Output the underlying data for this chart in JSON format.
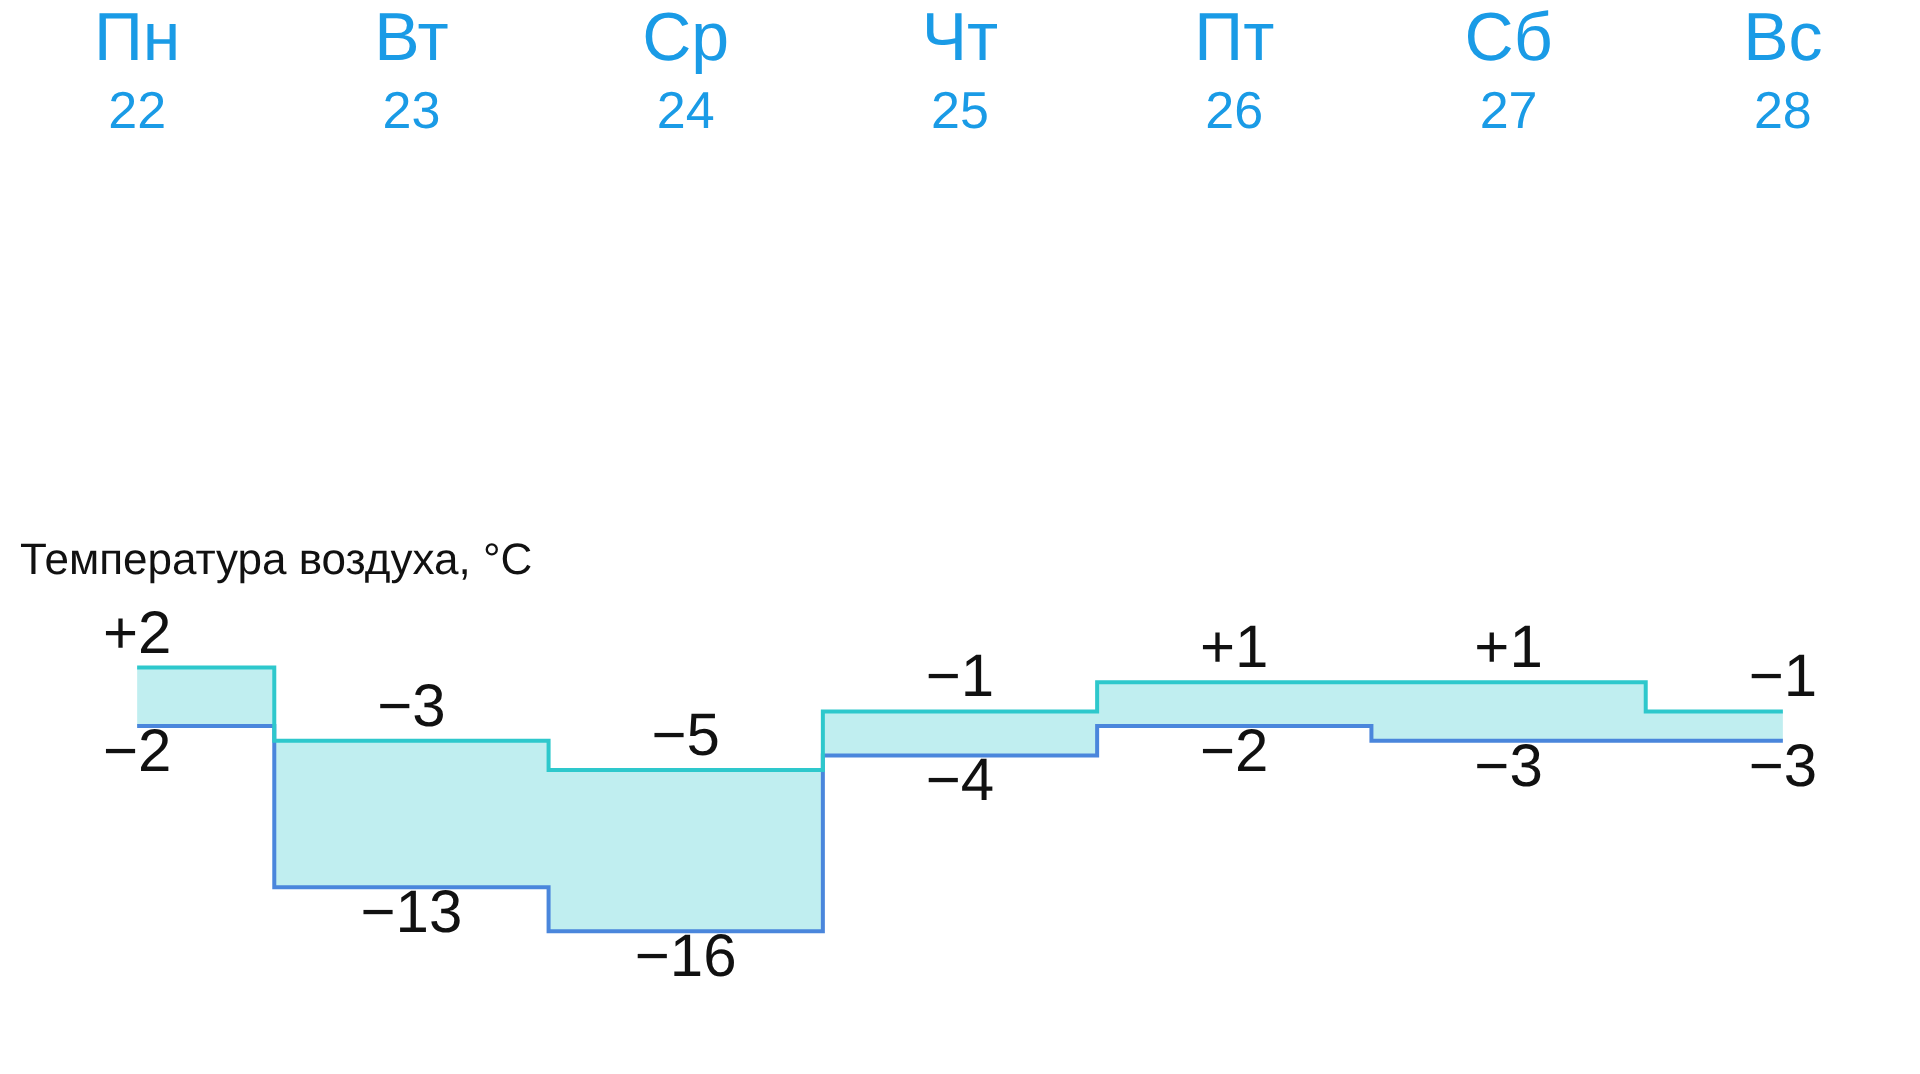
{
  "chart_data": {
    "type": "step",
    "title": "Температура воздуха, °C",
    "categories": [
      "Пн 22",
      "Вт 23",
      "Ср 24",
      "Чт 25",
      "Пт 26",
      "Сб 27",
      "Вс 28"
    ],
    "series": [
      {
        "color": "#4a86dc",
        "values": [
          -2,
          -13,
          -16,
          -4,
          -2,
          -3,
          -3
        ],
        "value_labels": [
          "−2",
          "−13",
          "−16",
          "−4",
          "−2",
          "−3",
          "−3"
        ]
      },
      {
        "color": "#2ec8cc",
        "values": [
          2,
          -3,
          -5,
          -1,
          1,
          1,
          -1
        ],
        "value_labels": [
          "+2",
          "−3",
          "−5",
          "−1",
          "+1",
          "+1",
          "−1"
        ],
        "lower": [
          -2,
          -13,
          -16,
          -4,
          -2,
          -3,
          -3
        ],
        "upper": [
          2,
          -3,
          -5,
          -1,
          1,
          1,
          -1
        ]
      }
    ],
    "marker": "none"
  }
}
